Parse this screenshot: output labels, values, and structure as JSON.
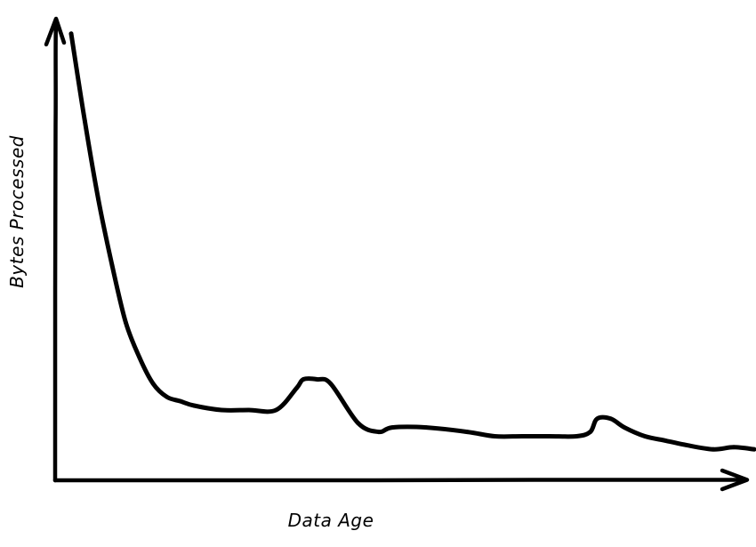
{
  "chart_data": {
    "type": "line",
    "xlabel": "Data Age",
    "ylabel": "Bytes Processed",
    "x_ticks_shown": false,
    "y_ticks_shown": false,
    "grid": false,
    "legend": "none",
    "style": "hand-drawn",
    "line_color": "#000000",
    "xlim": [
      0,
      100
    ],
    "ylim": [
      0,
      100
    ],
    "series": [
      {
        "x": [
          0,
          2,
          4,
          6,
          8,
          10,
          12,
          14,
          16,
          18,
          22,
          26,
          30,
          33,
          34,
          36,
          38,
          42,
          45,
          47,
          52,
          58,
          62,
          66,
          70,
          74,
          76,
          77,
          79,
          81,
          84,
          87,
          90,
          94,
          97,
          100
        ],
        "y": [
          98,
          78,
          60,
          45,
          32,
          24,
          18,
          15,
          14,
          13,
          12,
          12,
          12,
          17,
          19,
          19,
          18,
          9,
          7,
          8,
          8,
          7,
          6,
          6,
          6,
          6,
          7,
          10,
          10,
          8,
          6,
          5,
          4,
          3,
          3.5,
          3
        ]
      }
    ]
  }
}
